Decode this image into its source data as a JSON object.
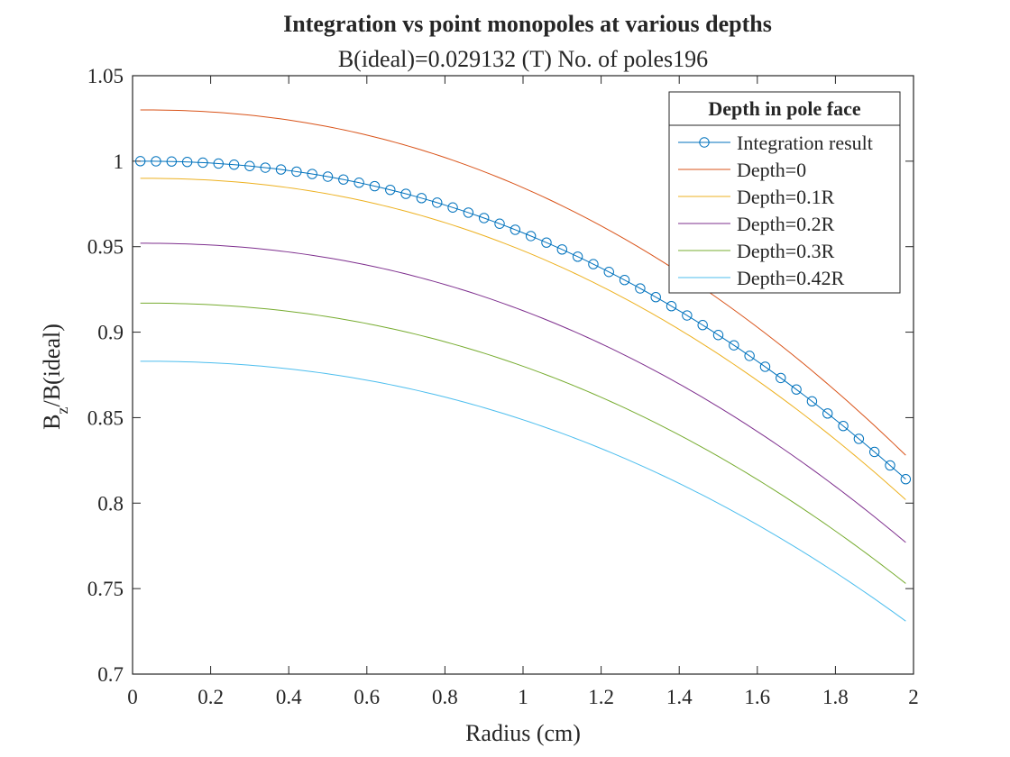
{
  "chart_data": {
    "type": "line",
    "title": "Integration vs point monopoles at various depths",
    "subtitle": "B(ideal)=0.029132 (T) No. of poles196",
    "xlabel": "Radius (cm)",
    "ylabel_main": "B",
    "ylabel_sub": "z",
    "ylabel_rest": "/B(ideal)",
    "xlim": [
      0,
      2
    ],
    "ylim": [
      0.7,
      1.05
    ],
    "xticks": [
      0,
      0.2,
      0.4,
      0.6,
      0.8,
      1,
      1.2,
      1.4,
      1.6,
      1.8,
      2
    ],
    "xtick_labels": [
      "0",
      "0.2",
      "0.4",
      "0.6",
      "0.8",
      "1",
      "1.2",
      "1.4",
      "1.6",
      "1.8",
      "2"
    ],
    "yticks": [
      0.7,
      0.75,
      0.8,
      0.85,
      0.9,
      0.95,
      1,
      1.05
    ],
    "ytick_labels": [
      "0.7",
      "0.75",
      "0.8",
      "0.85",
      "0.9",
      "0.95",
      "1",
      "1.05"
    ],
    "legend_title": "Depth in pole face",
    "legend_position": "top-right",
    "x_range": [
      0.02,
      1.98
    ],
    "series": [
      {
        "name": "Integration result",
        "color": "#0072bd",
        "marker": "circle",
        "y_start": 1.0,
        "y_end": 0.814
      },
      {
        "name": "Depth=0",
        "color": "#d95319",
        "marker": "none",
        "y_start": 1.03,
        "y_end": 0.828
      },
      {
        "name": "Depth=0.1R",
        "color": "#edb120",
        "marker": "none",
        "y_start": 0.99,
        "y_end": 0.802
      },
      {
        "name": "Depth=0.2R",
        "color": "#7e2f8e",
        "marker": "none",
        "y_start": 0.952,
        "y_end": 0.777
      },
      {
        "name": "Depth=0.3R",
        "color": "#77ac30",
        "marker": "none",
        "y_start": 0.917,
        "y_end": 0.753
      },
      {
        "name": "Depth=0.42R",
        "color": "#4dbeee",
        "marker": "none",
        "y_start": 0.883,
        "y_end": 0.731
      }
    ]
  }
}
